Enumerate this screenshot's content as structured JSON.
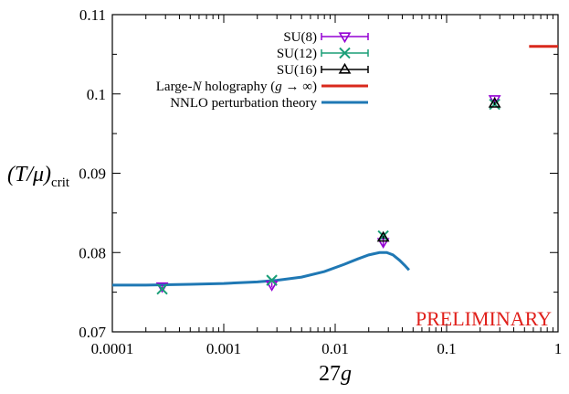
{
  "chart_data": {
    "type": "scatter",
    "xlabel": "27g",
    "ylabel": "(T/μ)crit",
    "ylabel_main": "(T/μ)",
    "ylabel_sub": "crit",
    "x_scale": "log",
    "xlim": [
      0.0001,
      1
    ],
    "ylim": [
      0.07,
      0.11
    ],
    "grid": false,
    "legend_position": "top-center",
    "x_ticks": [
      {
        "value": 0.0001,
        "label": "0.0001"
      },
      {
        "value": 0.001,
        "label": "0.001"
      },
      {
        "value": 0.01,
        "label": "0.01"
      },
      {
        "value": 0.1,
        "label": "0.1"
      },
      {
        "value": 1,
        "label": "1"
      }
    ],
    "y_ticks": [
      {
        "value": 0.07,
        "label": "0.07"
      },
      {
        "value": 0.08,
        "label": "0.08"
      },
      {
        "value": 0.09,
        "label": "0.09"
      },
      {
        "value": 0.1,
        "label": "0.1"
      },
      {
        "value": 0.11,
        "label": "0.11"
      }
    ],
    "annotation": {
      "text": "PRELIMINARY",
      "color": "#e0201b"
    },
    "series": [
      {
        "name": "SU(8)",
        "marker": "triangle-down",
        "color": "#9400d3",
        "points": [
          {
            "x": 0.00028,
            "y": 0.0757,
            "err": 0.0002
          },
          {
            "x": 0.0027,
            "y": 0.0759,
            "err": 0.0003
          },
          {
            "x": 0.027,
            "y": 0.0813,
            "err": 0.0006
          },
          {
            "x": 0.27,
            "y": 0.0993,
            "err": 0.0003
          }
        ]
      },
      {
        "name": "SU(12)",
        "marker": "x",
        "color": "#1a9e77",
        "points": [
          {
            "x": 0.00028,
            "y": 0.0754,
            "err": 0.0001
          },
          {
            "x": 0.0027,
            "y": 0.0765,
            "err": 0.0002
          },
          {
            "x": 0.027,
            "y": 0.0821,
            "err": 0.0002
          },
          {
            "x": 0.27,
            "y": 0.0987,
            "err": 0.0002
          }
        ]
      },
      {
        "name": "SU(16)",
        "marker": "triangle-up",
        "color": "#000000",
        "points": [
          {
            "x": 0.027,
            "y": 0.0819,
            "err": 0.0002
          },
          {
            "x": 0.27,
            "y": 0.0988,
            "err": 0.0002
          }
        ]
      }
    ],
    "lines": [
      {
        "name_main": "Large-N holography (g → ∞)",
        "name_parts": [
          "Large-",
          "N",
          " holography (",
          "g",
          " → ∞)"
        ],
        "color": "#d9291c",
        "points": [
          [
            0.55,
            0.106
          ],
          [
            1,
            0.106
          ]
        ]
      },
      {
        "name_main": "NNLO perturbation theory",
        "color": "#1f78b4",
        "points": [
          [
            0.0001,
            0.0759
          ],
          [
            0.0002,
            0.0759
          ],
          [
            0.0005,
            0.076
          ],
          [
            0.001,
            0.0761
          ],
          [
            0.002,
            0.0763
          ],
          [
            0.003,
            0.0765
          ],
          [
            0.005,
            0.0769
          ],
          [
            0.008,
            0.0776
          ],
          [
            0.012,
            0.0785
          ],
          [
            0.016,
            0.0792
          ],
          [
            0.02,
            0.0797
          ],
          [
            0.025,
            0.08
          ],
          [
            0.029,
            0.08
          ],
          [
            0.033,
            0.0797
          ],
          [
            0.038,
            0.079
          ],
          [
            0.042,
            0.0784
          ],
          [
            0.046,
            0.0778
          ]
        ]
      }
    ]
  }
}
